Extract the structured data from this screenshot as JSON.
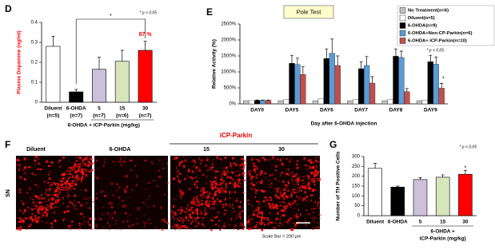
{
  "chart_data": [
    {
      "panel": "D",
      "type": "bar",
      "ylabel": "Plasma Dopamine (ng/ml)",
      "ylabel_color": "#ff0000",
      "categories": [
        "Diluent",
        "6-OHDA",
        "5",
        "15",
        "30"
      ],
      "sublabels": [
        "(n=5)",
        "(n=7)",
        "(n=7)",
        "(n=6)",
        "(n=7)"
      ],
      "values": [
        0.28,
        0.052,
        0.165,
        0.205,
        0.26
      ],
      "errors": [
        0.05,
        0.012,
        0.06,
        0.055,
        0.045
      ],
      "colors": [
        "#ffffff",
        "#000000",
        "#ccc0da",
        "#d7e4bc",
        "#ff0000"
      ],
      "ylim": [
        0,
        0.4
      ],
      "yticks": [
        0,
        0.1,
        0.2,
        0.3,
        0.4
      ],
      "group_label": [
        "6-OHDA + iCP-Parkin (mg/kg)"
      ],
      "percent_label": "87 %",
      "significance": "*",
      "p_note": "* p < 0.05"
    },
    {
      "panel": "E",
      "type": "bar",
      "title": "Pole Test",
      "ylabel": "Relative Activity (%)",
      "xlabel": "Day after 6-OHDA injection",
      "categories": [
        "DAY0",
        "DAY5",
        "DAY6",
        "DAY7",
        "DAY8",
        "DAY9"
      ],
      "series": [
        {
          "name": "No Treatment(n=6)",
          "color": "#c0c0c0",
          "values": [
            100,
            100,
            100,
            100,
            100,
            100
          ]
        },
        {
          "name": "Diluent(n=5)",
          "color": "#ffffff",
          "values": [
            100,
            130,
            170,
            130,
            130,
            120
          ]
        },
        {
          "name": "6-OHDA(n=9)",
          "color": "#000000",
          "values": [
            110,
            1270,
            1420,
            1100,
            1490,
            1320
          ],
          "errors": [
            10,
            250,
            300,
            220,
            230,
            200
          ]
        },
        {
          "name": "6-OHDA+Non-CP-Parkin(n=6)",
          "color": "#5b9bd5",
          "values": [
            110,
            1230,
            1580,
            1200,
            1450,
            1240
          ],
          "errors": [
            10,
            200,
            450,
            280,
            200,
            230
          ]
        },
        {
          "name": "6-OHDA+ iCP-Parkin(n=10)",
          "color": "#c0504d",
          "values": [
            110,
            920,
            1200,
            650,
            380,
            490
          ],
          "errors": [
            10,
            250,
            300,
            200,
            100,
            150
          ]
        }
      ],
      "ylim": [
        0,
        2500
      ],
      "yticks": [
        {
          "value": 0,
          "label": "0%"
        },
        {
          "value": 500,
          "label": "500%"
        },
        {
          "value": 1000,
          "label": "1000%"
        },
        {
          "value": 1500,
          "label": "1500%"
        },
        {
          "value": 2000,
          "label": "2000%"
        },
        {
          "value": 2500,
          "label": "2500%"
        }
      ],
      "significance": "*",
      "p_note": "* p < 0.05",
      "legend": "top-right"
    },
    {
      "panel": "G",
      "type": "bar",
      "ylabel": "Number of TH Positive Cells",
      "categories": [
        "Diluent",
        "6-OHDA",
        "5",
        "15",
        "30"
      ],
      "values": [
        240,
        145,
        183,
        195,
        210
      ],
      "errors": [
        25,
        5,
        10,
        12,
        20
      ],
      "colors": [
        "#ffffff",
        "#000000",
        "#ccc0da",
        "#d7e4bc",
        "#ff0000"
      ],
      "ylim": [
        0,
        300
      ],
      "yticks": [
        0,
        50,
        100,
        150,
        200,
        250,
        300
      ],
      "group_label": [
        "6-OHDA +",
        "iCP-Parkin (mg/kg)"
      ],
      "significance": "*",
      "p_note": "* p < 0.05"
    }
  ],
  "images": {
    "panel": "F",
    "group_label": "iCP-Parkin",
    "region": "SN",
    "scale_bar": "Scale Bar = 200 μm",
    "labels": [
      "Diluent",
      "6-OHDA",
      "15",
      "30"
    ]
  }
}
